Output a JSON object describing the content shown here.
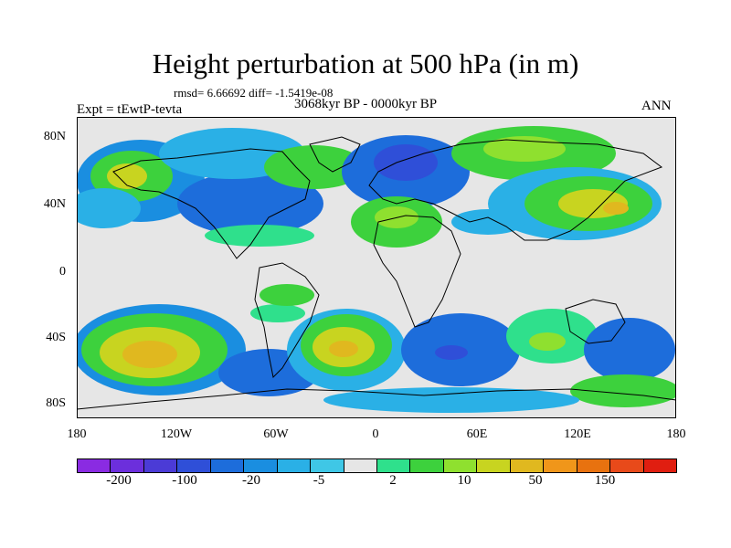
{
  "plot": {
    "title": "Height perturbation at 500 hPa (in m)",
    "stats_line": "rmsd= 6.66692 diff= -1.5419e-08",
    "period": "3068kyr BP - 0000kyr BP",
    "experiment": "Expt = tEwtP-tevta",
    "season": "ANN"
  },
  "lat_ticks": [
    "80N",
    "40N",
    "0",
    "40S",
    "80S"
  ],
  "lon_ticks": [
    "180",
    "120W",
    "60W",
    "0",
    "60E",
    "120E",
    "180"
  ],
  "colorbar": {
    "labels": [
      "-200",
      "-100",
      "-20",
      "-5",
      "2",
      "10",
      "50",
      "150"
    ],
    "colors": [
      "#8a2be2",
      "#6c2fdc",
      "#4b3bd6",
      "#2f4fd8",
      "#1d6ddb",
      "#1a8ee0",
      "#2ab0e6",
      "#3fc7e6",
      "#e6e6e6",
      "#2fe08c",
      "#3dd13d",
      "#8fe02f",
      "#c8d420",
      "#e0b81f",
      "#f0961a",
      "#e8720f",
      "#e84a1a",
      "#e01e10"
    ]
  },
  "map": {
    "background": "#e6e6e6",
    "coastline_color": "#000000"
  }
}
